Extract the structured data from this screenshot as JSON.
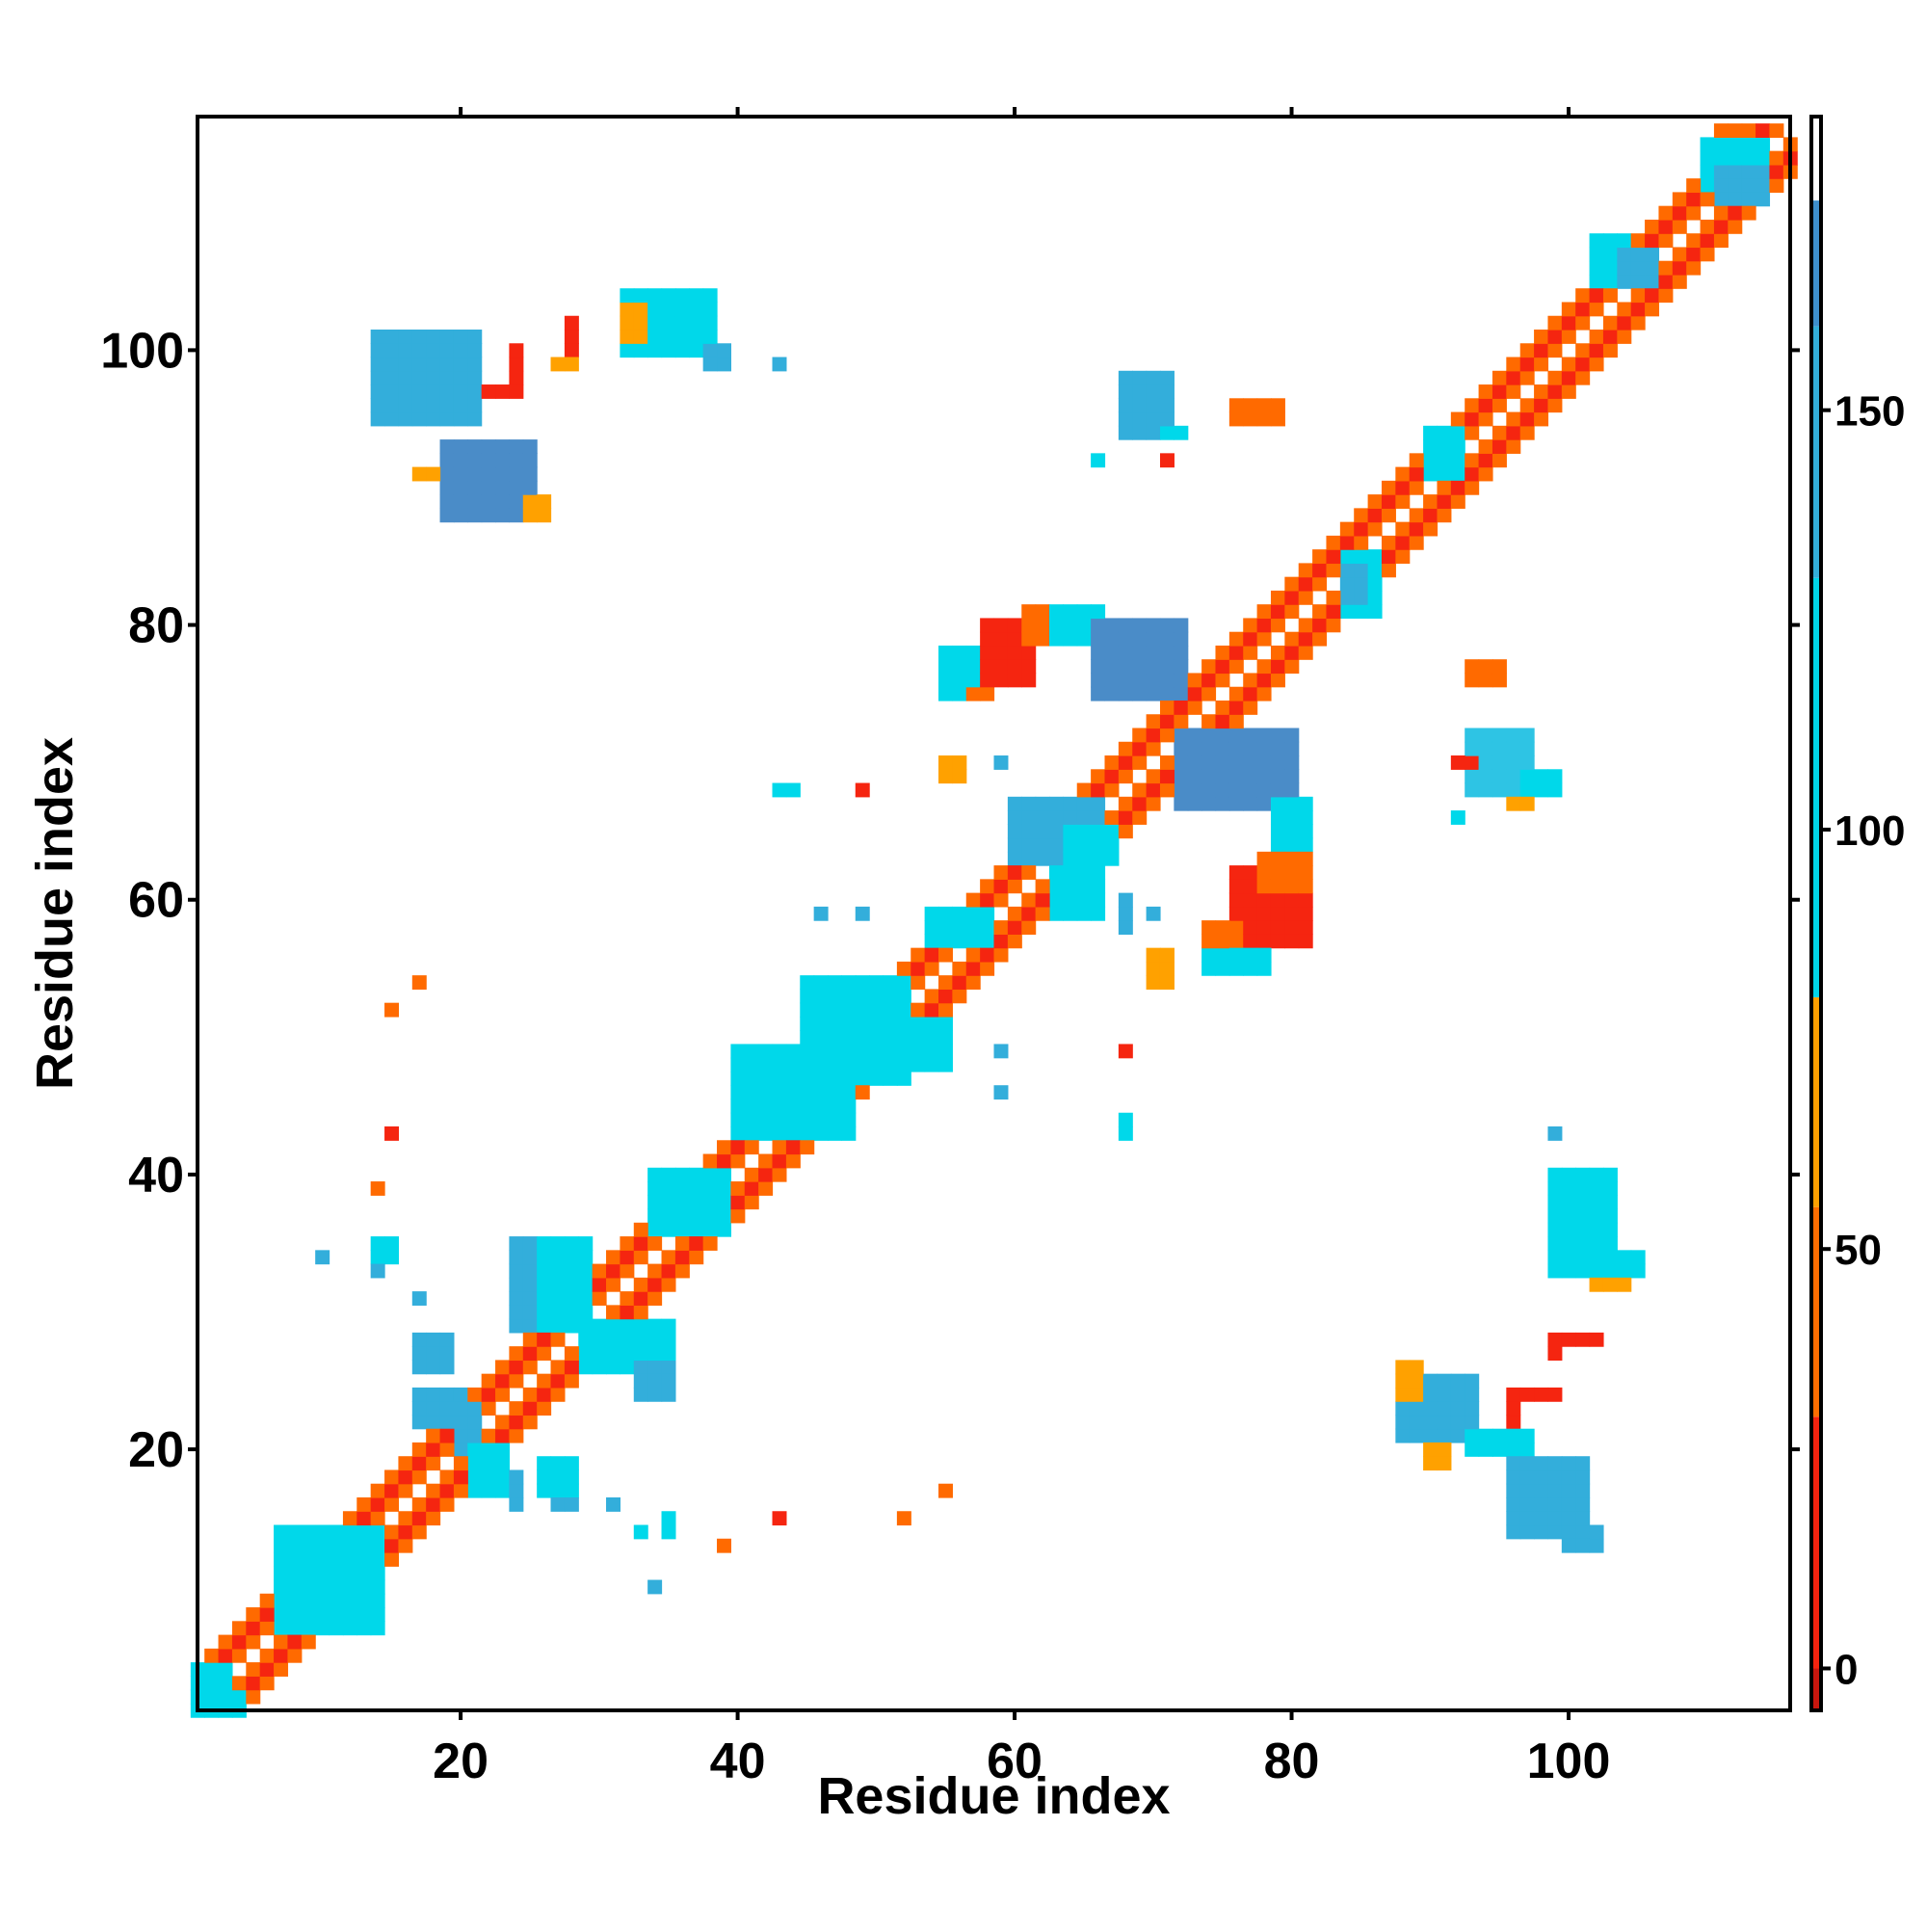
{
  "chart_data": {
    "type": "heatmap",
    "title": "",
    "xlabel": "Residue index",
    "ylabel": "Residue index",
    "xlim": [
      1,
      116
    ],
    "ylim": [
      1,
      117
    ],
    "x_ticks": [
      20,
      40,
      60,
      80,
      100
    ],
    "y_ticks": [
      20,
      40,
      60,
      80,
      100
    ],
    "colorbar": {
      "range": [
        -5,
        185
      ],
      "ticks": [
        0,
        50,
        100,
        150
      ],
      "bands": [
        {
          "from": -5,
          "to": 0,
          "color": "#c8160e"
        },
        {
          "from": 0,
          "to": 30,
          "color": "#f5230f"
        },
        {
          "from": 30,
          "to": 55,
          "color": "#ff6d00"
        },
        {
          "from": 55,
          "to": 80,
          "color": "#ffa000"
        },
        {
          "from": 80,
          "to": 130,
          "color": "#00d6e8"
        },
        {
          "from": 130,
          "to": 160,
          "color": "#33aed8"
        },
        {
          "from": 160,
          "to": 175,
          "color": "#3e8fcc"
        },
        {
          "from": 175,
          "to": 185,
          "color": "#ffffff"
        }
      ]
    },
    "cell_colors": {
      "r": "#f52510",
      "o": "#ff6a00",
      "a": "#ffa100",
      "c": "#00d8ea",
      "t": "#2ec4e4",
      "s": "#33aedb",
      "b": "#4a8cc8"
    },
    "cell_values": {
      "r": 10,
      "o": 40,
      "a": 65,
      "c": 105,
      "t": 130,
      "s": 145,
      "b": 165
    },
    "diagonal_band": {
      "start": 1,
      "end": 116,
      "pattern": [
        "o",
        "r",
        "o",
        "a",
        "o",
        "r",
        "o"
      ]
    },
    "blocks": [
      {
        "x": [
          14,
          21
        ],
        "y": [
          95,
          101
        ],
        "c": "s"
      },
      {
        "x": [
          19,
          25
        ],
        "y": [
          88,
          93
        ],
        "c": "b"
      },
      {
        "x": [
          17,
          18
        ],
        "y": [
          91,
          91
        ],
        "c": "a"
      },
      {
        "x": [
          25,
          26
        ],
        "y": [
          88,
          89
        ],
        "c": "a"
      },
      {
        "x": [
          22,
          24
        ],
        "y": [
          97,
          97
        ],
        "c": "r"
      },
      {
        "x": [
          24,
          24
        ],
        "y": [
          97,
          100
        ],
        "c": "r"
      },
      {
        "x": [
          28,
          28
        ],
        "y": [
          100,
          102
        ],
        "c": "r"
      },
      {
        "x": [
          27,
          28
        ],
        "y": [
          99,
          99
        ],
        "c": "a"
      },
      {
        "x": [
          32,
          38
        ],
        "y": [
          100,
          104
        ],
        "c": "c"
      },
      {
        "x": [
          32,
          33
        ],
        "y": [
          101,
          103
        ],
        "c": "a"
      },
      {
        "x": [
          38,
          39
        ],
        "y": [
          99,
          100
        ],
        "c": "s"
      },
      {
        "x": [
          43,
          43
        ],
        "y": [
          99,
          99
        ],
        "c": "s"
      },
      {
        "x": [
          68,
          71
        ],
        "y": [
          94,
          98
        ],
        "c": "s"
      },
      {
        "x": [
          71,
          72
        ],
        "y": [
          94,
          94
        ],
        "c": "c"
      },
      {
        "x": [
          71,
          71
        ],
        "y": [
          92,
          92
        ],
        "c": "r"
      },
      {
        "x": [
          66,
          66
        ],
        "y": [
          92,
          92
        ],
        "c": "c"
      },
      {
        "x": [
          76,
          79
        ],
        "y": [
          95,
          96
        ],
        "c": "o"
      },
      {
        "x": [
          55,
          58
        ],
        "y": [
          75,
          78
        ],
        "c": "c"
      },
      {
        "x": [
          58,
          61
        ],
        "y": [
          76,
          80
        ],
        "c": "r"
      },
      {
        "x": [
          61,
          63
        ],
        "y": [
          79,
          81
        ],
        "c": "o"
      },
      {
        "x": [
          57,
          58
        ],
        "y": [
          75,
          75
        ],
        "c": "o"
      },
      {
        "x": [
          63,
          66
        ],
        "y": [
          79,
          81
        ],
        "c": "c"
      },
      {
        "x": [
          66,
          72
        ],
        "y": [
          75,
          80
        ],
        "c": "b"
      },
      {
        "x": [
          72,
          80
        ],
        "y": [
          67,
          72
        ],
        "c": "b"
      },
      {
        "x": [
          79,
          81
        ],
        "y": [
          64,
          67
        ],
        "c": "c"
      },
      {
        "x": [
          76,
          81
        ],
        "y": [
          57,
          62
        ],
        "c": "r"
      },
      {
        "x": [
          78,
          81
        ],
        "y": [
          61,
          63
        ],
        "c": "o"
      },
      {
        "x": [
          74,
          76
        ],
        "y": [
          56,
          58
        ],
        "c": "o"
      },
      {
        "x": [
          74,
          78
        ],
        "y": [
          55,
          56
        ],
        "c": "c"
      },
      {
        "x": [
          60,
          66
        ],
        "y": [
          63,
          67
        ],
        "c": "s"
      },
      {
        "x": [
          64,
          67
        ],
        "y": [
          63,
          65
        ],
        "c": "c"
      },
      {
        "x": [
          55,
          56
        ],
        "y": [
          69,
          70
        ],
        "c": "a"
      },
      {
        "x": [
          59,
          59
        ],
        "y": [
          70,
          70
        ],
        "c": "s"
      },
      {
        "x": [
          43,
          44
        ],
        "y": [
          68,
          68
        ],
        "c": "c"
      },
      {
        "x": [
          49,
          49
        ],
        "y": [
          68,
          68
        ],
        "c": "r"
      },
      {
        "x": [
          46,
          46
        ],
        "y": [
          59,
          59
        ],
        "c": "s"
      },
      {
        "x": [
          49,
          49
        ],
        "y": [
          59,
          59
        ],
        "c": "s"
      },
      {
        "x": [
          68,
          68
        ],
        "y": [
          58,
          60
        ],
        "c": "s"
      },
      {
        "x": [
          70,
          70
        ],
        "y": [
          59,
          59
        ],
        "c": "s"
      },
      {
        "x": [
          70,
          71
        ],
        "y": [
          54,
          56
        ],
        "c": "a"
      },
      {
        "x": [
          59,
          59
        ],
        "y": [
          46,
          46
        ],
        "c": "s"
      },
      {
        "x": [
          59,
          59
        ],
        "y": [
          49,
          49
        ],
        "c": "s"
      },
      {
        "x": [
          68,
          68
        ],
        "y": [
          49,
          49
        ],
        "c": "r"
      },
      {
        "x": [
          68,
          68
        ],
        "y": [
          43,
          44
        ],
        "c": "c"
      },
      {
        "x": [
          93,
          97
        ],
        "y": [
          68,
          72
        ],
        "c": "t"
      },
      {
        "x": [
          97,
          99
        ],
        "y": [
          68,
          69
        ],
        "c": "c"
      },
      {
        "x": [
          92,
          93
        ],
        "y": [
          70,
          70
        ],
        "c": "r"
      },
      {
        "x": [
          96,
          97
        ],
        "y": [
          67,
          67
        ],
        "c": "a"
      },
      {
        "x": [
          92,
          92
        ],
        "y": [
          66,
          66
        ],
        "c": "c"
      },
      {
        "x": [
          93,
          95
        ],
        "y": [
          76,
          77
        ],
        "c": "o"
      },
      {
        "x": [
          99,
          99
        ],
        "y": [
          43,
          43
        ],
        "c": "s"
      },
      {
        "x": [
          99,
          103
        ],
        "y": [
          33,
          40
        ],
        "c": "c"
      },
      {
        "x": [
          102,
          105
        ],
        "y": [
          33,
          34
        ],
        "c": "c"
      },
      {
        "x": [
          102,
          104
        ],
        "y": [
          32,
          32
        ],
        "c": "a"
      },
      {
        "x": [
          99,
          102
        ],
        "y": [
          28,
          28
        ],
        "c": "r"
      },
      {
        "x": [
          99,
          99
        ],
        "y": [
          27,
          28
        ],
        "c": "r"
      },
      {
        "x": [
          96,
          99
        ],
        "y": [
          24,
          24
        ],
        "c": "r"
      },
      {
        "x": [
          96,
          96
        ],
        "y": [
          22,
          24
        ],
        "c": "r"
      },
      {
        "x": [
          88,
          93
        ],
        "y": [
          21,
          25
        ],
        "c": "s"
      },
      {
        "x": [
          88,
          89
        ],
        "y": [
          24,
          26
        ],
        "c": "a"
      },
      {
        "x": [
          90,
          91
        ],
        "y": [
          19,
          20
        ],
        "c": "a"
      },
      {
        "x": [
          93,
          97
        ],
        "y": [
          20,
          21
        ],
        "c": "c"
      },
      {
        "x": [
          96,
          101
        ],
        "y": [
          14,
          19
        ],
        "c": "s"
      },
      {
        "x": [
          100,
          102
        ],
        "y": [
          13,
          14
        ],
        "c": "s"
      },
      {
        "x": [
          20,
          21
        ],
        "y": [
          20,
          23
        ],
        "c": "s"
      },
      {
        "x": [
          21,
          23
        ],
        "y": [
          17,
          20
        ],
        "c": "c"
      },
      {
        "x": [
          24,
          26
        ],
        "y": [
          29,
          35
        ],
        "c": "s"
      },
      {
        "x": [
          26,
          29
        ],
        "y": [
          29,
          35
        ],
        "c": "c"
      },
      {
        "x": [
          29,
          35
        ],
        "y": [
          26,
          29
        ],
        "c": "c"
      },
      {
        "x": [
          33,
          35
        ],
        "y": [
          24,
          26
        ],
        "c": "s"
      },
      {
        "x": [
          17,
          19
        ],
        "y": [
          26,
          28
        ],
        "c": "s"
      },
      {
        "x": [
          17,
          20
        ],
        "y": [
          22,
          24
        ],
        "c": "s"
      },
      {
        "x": [
          14,
          15
        ],
        "y": [
          34,
          35
        ],
        "c": "c"
      },
      {
        "x": [
          10,
          10
        ],
        "y": [
          34,
          34
        ],
        "c": "s"
      },
      {
        "x": [
          14,
          14
        ],
        "y": [
          33,
          33
        ],
        "c": "s"
      },
      {
        "x": [
          17,
          17
        ],
        "y": [
          31,
          31
        ],
        "c": "s"
      },
      {
        "x": [
          14,
          14
        ],
        "y": [
          39,
          39
        ],
        "c": "o"
      },
      {
        "x": [
          15,
          15
        ],
        "y": [
          43,
          43
        ],
        "c": "r"
      },
      {
        "x": [
          15,
          15
        ],
        "y": [
          52,
          52
        ],
        "c": "o"
      },
      {
        "x": [
          17,
          17
        ],
        "y": [
          54,
          54
        ],
        "c": "o"
      },
      {
        "x": [
          24,
          24
        ],
        "y": [
          16,
          18
        ],
        "c": "s"
      },
      {
        "x": [
          26,
          28
        ],
        "y": [
          17,
          19
        ],
        "c": "c"
      },
      {
        "x": [
          27,
          28
        ],
        "y": [
          16,
          16
        ],
        "c": "s"
      },
      {
        "x": [
          31,
          31
        ],
        "y": [
          16,
          16
        ],
        "c": "s"
      },
      {
        "x": [
          33,
          33
        ],
        "y": [
          14,
          14
        ],
        "c": "c"
      },
      {
        "x": [
          35,
          35
        ],
        "y": [
          14,
          15
        ],
        "c": "c"
      },
      {
        "x": [
          34,
          34
        ],
        "y": [
          10,
          10
        ],
        "c": "s"
      },
      {
        "x": [
          39,
          39
        ],
        "y": [
          13,
          13
        ],
        "c": "o"
      },
      {
        "x": [
          43,
          43
        ],
        "y": [
          15,
          15
        ],
        "c": "r"
      },
      {
        "x": [
          52,
          52
        ],
        "y": [
          15,
          15
        ],
        "c": "o"
      },
      {
        "x": [
          55,
          55
        ],
        "y": [
          17,
          17
        ],
        "c": "o"
      },
      {
        "x": [
          7,
          14
        ],
        "y": [
          7,
          14
        ],
        "c": "c"
      },
      {
        "x": [
          11,
          14
        ],
        "y": [
          7,
          11
        ],
        "c": "c"
      },
      {
        "x": [
          40,
          48
        ],
        "y": [
          43,
          49
        ],
        "c": "c"
      },
      {
        "x": [
          45,
          52
        ],
        "y": [
          47,
          54
        ],
        "c": "c"
      },
      {
        "x": [
          49,
          55
        ],
        "y": [
          48,
          51
        ],
        "c": "c"
      },
      {
        "x": [
          34,
          39
        ],
        "y": [
          36,
          40
        ],
        "c": "c"
      },
      {
        "x": [
          54,
          58
        ],
        "y": [
          57,
          59
        ],
        "c": "c"
      },
      {
        "x": [
          63,
          66
        ],
        "y": [
          59,
          62
        ],
        "c": "c"
      },
      {
        "x": [
          84,
          86
        ],
        "y": [
          81,
          85
        ],
        "c": "c"
      },
      {
        "x": [
          84,
          85
        ],
        "y": [
          82,
          84
        ],
        "c": "s"
      },
      {
        "x": [
          90,
          92
        ],
        "y": [
          91,
          94
        ],
        "c": "c"
      },
      {
        "x": [
          102,
          104
        ],
        "y": [
          105,
          108
        ],
        "c": "c"
      },
      {
        "x": [
          104,
          106
        ],
        "y": [
          105,
          107
        ],
        "c": "s"
      },
      {
        "x": [
          110,
          114
        ],
        "y": [
          112,
          115
        ],
        "c": "c"
      },
      {
        "x": [
          111,
          114
        ],
        "y": [
          111,
          113
        ],
        "c": "s"
      },
      {
        "x": [
          111,
          113
        ],
        "y": [
          116,
          116
        ],
        "c": "o"
      },
      {
        "x": [
          1,
          3
        ],
        "y": [
          1,
          4
        ],
        "c": "c"
      },
      {
        "x": [
          2,
          4
        ],
        "y": [
          1,
          2
        ],
        "c": "c"
      }
    ]
  }
}
